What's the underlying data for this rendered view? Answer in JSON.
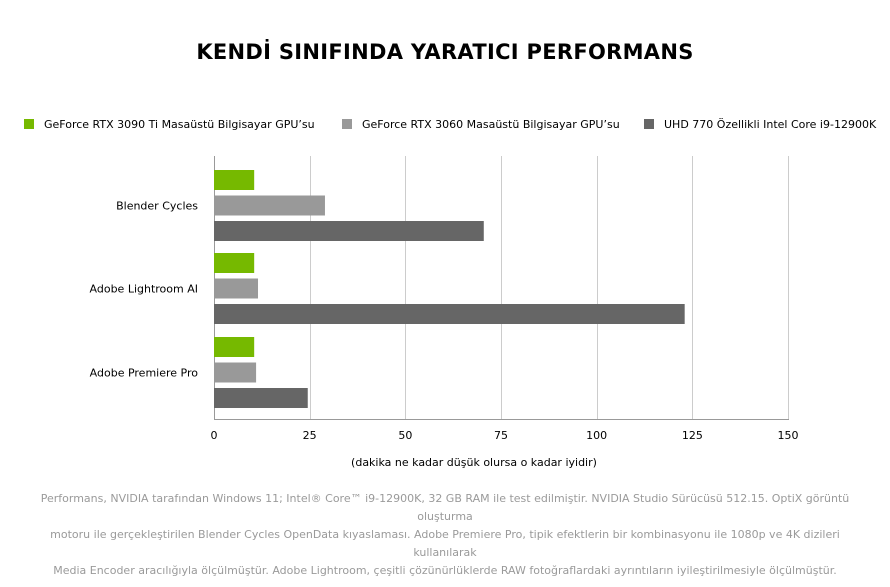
{
  "chart_data": {
    "type": "bar",
    "orientation": "horizontal",
    "title": "KENDİ SINIFINDA YARATICI PERFORMANS",
    "categories": [
      "Blender Cycles",
      "Adobe Lightroom AI",
      "Adobe Premiere Pro"
    ],
    "series": [
      {
        "name": "GeForce RTX 3090 Ti Masaüstü Bilgisayar GPU’su",
        "color": "#76b900",
        "values": [
          10.5,
          10.5,
          10.5
        ]
      },
      {
        "name": "GeForce RTX 3060 Masaüstü Bilgisayar GPU’su",
        "color": "#999999",
        "values": [
          29,
          11.5,
          11
        ]
      },
      {
        "name": "UHD 770 Özellikli Intel Core i9-12900K",
        "color": "#666666",
        "values": [
          70.5,
          123,
          24.5
        ]
      }
    ],
    "xlim": [
      0,
      150
    ],
    "xticks": [
      0,
      25,
      50,
      75,
      100,
      125,
      150
    ],
    "xlabel": "(dakika ne kadar düşük olursa o kadar iyidir)",
    "grid": true,
    "legend_position": "top"
  },
  "footnote": {
    "line1": "Performans, NVIDIA tarafından Windows 11; Intel® Core™ i9-12900K, 32 GB RAM ile test edilmiştir. NVIDIA Studio Sürücüsü 512.15. OptiX görüntü oluşturma",
    "line2": "motoru ile gerçekleştirilen Blender Cycles OpenData kıyaslaması. Adobe Premiere Pro, tipik efektlerin bir kombinasyonu ile 1080p ve 4K dizileri kullanılarak",
    "line3": "Media Encoder aracılığıyla ölçülmüştür. Adobe Lightroom, çeşitli çözünürlüklerde RAW fotoğraflardaki ayrıntıların iyileştirilmesiyle ölçülmüştür."
  }
}
